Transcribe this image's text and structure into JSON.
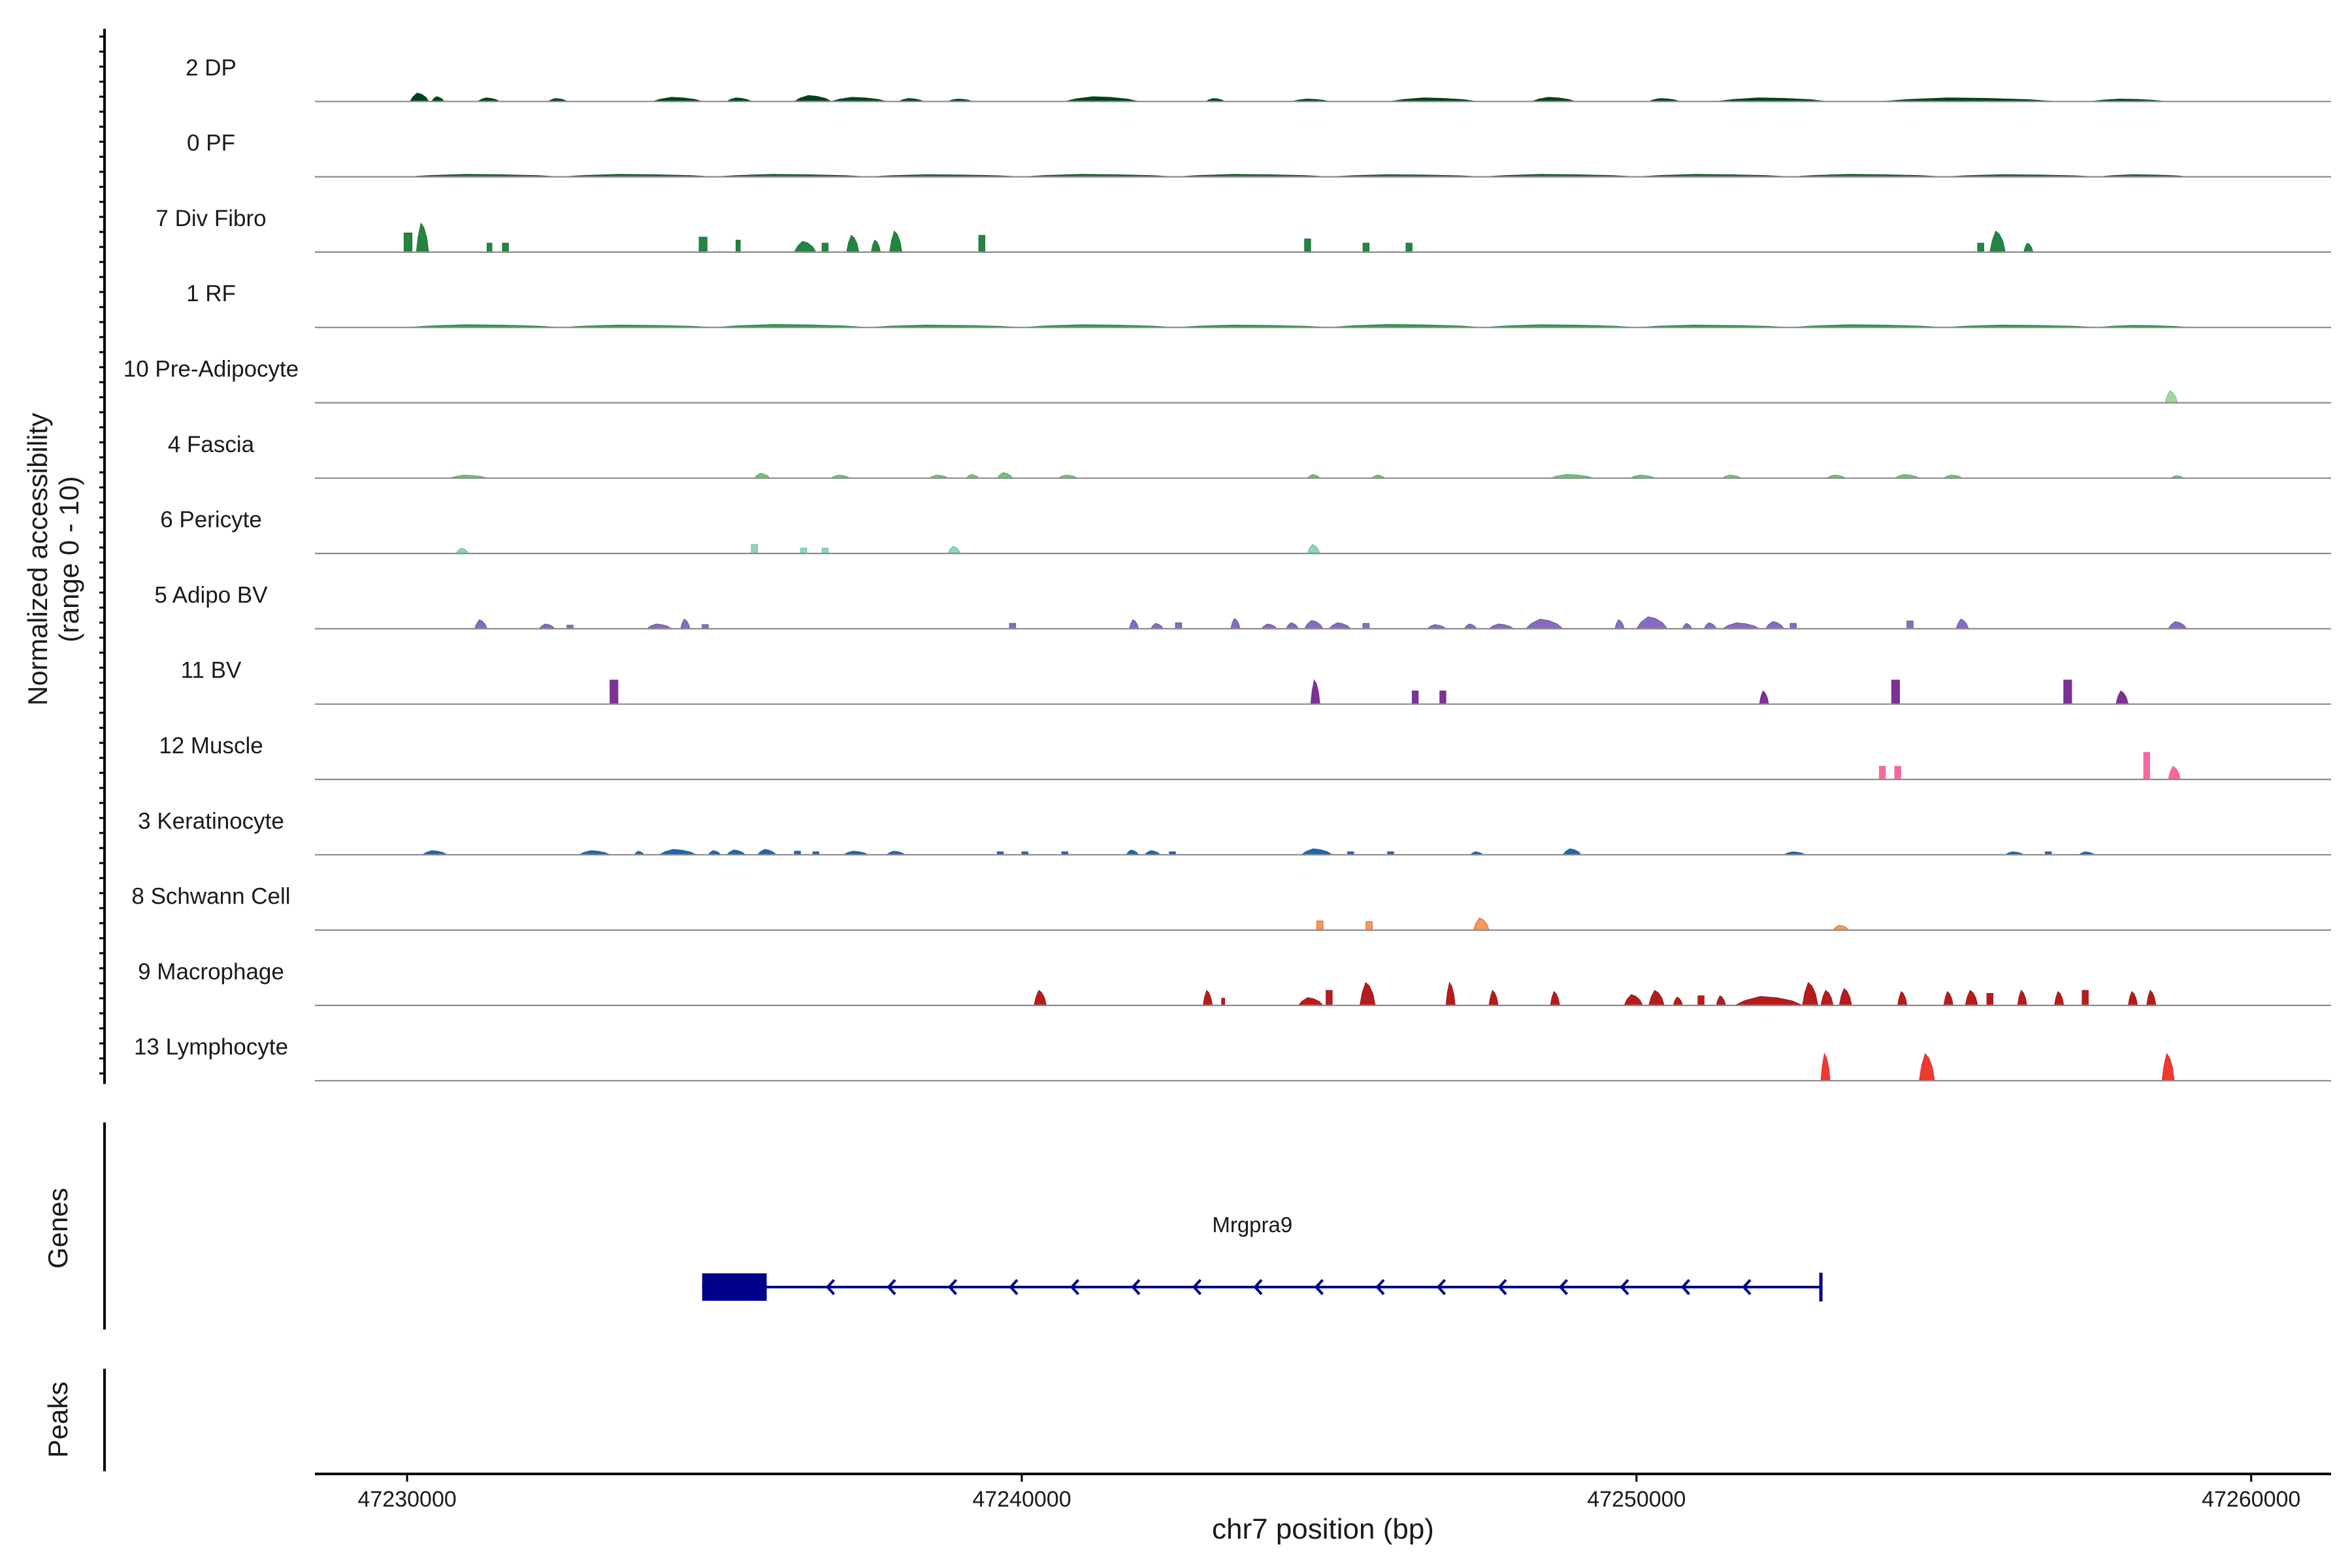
{
  "chart_data": {
    "type": "area",
    "y_axis_label_line1": "Normalized accessibility",
    "y_axis_label_line2": "(range 0 - 10)",
    "ylim": [
      0,
      10
    ],
    "xlabel": "chr7 position (bp)",
    "xlim": [
      47228500,
      47261300
    ],
    "x_ticks": [
      47230000,
      47240000,
      47250000,
      47260000
    ],
    "x_tick_labels": [
      "47230000",
      "47240000",
      "47250000",
      "47260000"
    ],
    "panel_labels": {
      "genes": "Genes",
      "peaks": "Peaks"
    },
    "genes": [
      {
        "name": "Mrgpra9",
        "strand": "-",
        "start": 47234800,
        "end": 47253000,
        "exon": [
          47234800,
          47235850
        ],
        "color": "#00008b"
      }
    ],
    "tracks": [
      {
        "name": "2 DP",
        "color": "#00441b",
        "fill": "#00441b",
        "peaks": [
          [
            47230050,
            47230350,
            1.4
          ],
          [
            47230400,
            47230600,
            0.8
          ],
          [
            47231150,
            47231500,
            0.6
          ],
          [
            47232300,
            47232600,
            0.5
          ],
          [
            47234000,
            47234800,
            0.7
          ],
          [
            47235200,
            47235600,
            0.6
          ],
          [
            47236300,
            47236900,
            1.0
          ],
          [
            47236900,
            47237800,
            0.7
          ],
          [
            47238000,
            47238400,
            0.5
          ],
          [
            47238800,
            47239200,
            0.4
          ],
          [
            47240700,
            47241900,
            0.8
          ],
          [
            47243000,
            47243300,
            0.5
          ],
          [
            47244400,
            47245000,
            0.4
          ],
          [
            47246000,
            47247400,
            0.6
          ],
          [
            47248300,
            47249000,
            0.7
          ],
          [
            47250200,
            47250700,
            0.5
          ],
          [
            47251300,
            47253100,
            0.6
          ],
          [
            47254000,
            47256800,
            0.6
          ],
          [
            47257400,
            47258600,
            0.4
          ]
        ]
      },
      {
        "name": "0 PF",
        "color": "#00441b",
        "fill": "#1e6b34",
        "peaks": [
          [
            47230000,
            47232500,
            0.4
          ],
          [
            47232500,
            47235000,
            0.4
          ],
          [
            47235000,
            47237500,
            0.4
          ],
          [
            47237500,
            47240000,
            0.35
          ],
          [
            47240000,
            47242500,
            0.4
          ],
          [
            47242500,
            47245000,
            0.4
          ],
          [
            47245000,
            47247500,
            0.35
          ],
          [
            47247500,
            47250000,
            0.4
          ],
          [
            47250000,
            47252500,
            0.4
          ],
          [
            47252500,
            47255000,
            0.4
          ],
          [
            47255000,
            47257500,
            0.35
          ],
          [
            47257500,
            47259000,
            0.35
          ]
        ]
      },
      {
        "name": "7 Div Fibro",
        "color": "#1b7837",
        "fill": "#238443",
        "peaks": [
          [
            47229950,
            47230080,
            3.2
          ],
          [
            47230150,
            47230350,
            4.8
          ],
          [
            47231300,
            47231380,
            1.5
          ],
          [
            47231550,
            47231650,
            1.5
          ],
          [
            47234750,
            47234880,
            2.5
          ],
          [
            47235350,
            47235420,
            2.0
          ],
          [
            47236300,
            47236650,
            1.8
          ],
          [
            47236750,
            47236850,
            1.5
          ],
          [
            47237150,
            47237350,
            2.8
          ],
          [
            47237550,
            47237700,
            2.0
          ],
          [
            47237850,
            47238050,
            3.5
          ],
          [
            47239300,
            47239400,
            2.8
          ],
          [
            47244600,
            47244700,
            2.2
          ],
          [
            47245550,
            47245650,
            1.5
          ],
          [
            47246250,
            47246350,
            1.5
          ],
          [
            47255550,
            47255650,
            1.5
          ],
          [
            47255750,
            47256000,
            3.5
          ],
          [
            47256300,
            47256450,
            1.5
          ]
        ]
      },
      {
        "name": "1 RF",
        "color": "#238443",
        "fill": "#2e9b52",
        "peaks": [
          [
            47230000,
            47232500,
            0.45
          ],
          [
            47232500,
            47235000,
            0.4
          ],
          [
            47235000,
            47237500,
            0.5
          ],
          [
            47237500,
            47240000,
            0.4
          ],
          [
            47240000,
            47242500,
            0.45
          ],
          [
            47242500,
            47245000,
            0.4
          ],
          [
            47245000,
            47247500,
            0.5
          ],
          [
            47247500,
            47250000,
            0.45
          ],
          [
            47250000,
            47252500,
            0.4
          ],
          [
            47252500,
            47255000,
            0.45
          ],
          [
            47255000,
            47257500,
            0.4
          ],
          [
            47257500,
            47259000,
            0.35
          ]
        ]
      },
      {
        "name": "10 Pre-Adipocyte",
        "color": "#74c476",
        "fill": "#9ed89a",
        "peaks": [
          [
            47258600,
            47258800,
            2.0
          ]
        ]
      },
      {
        "name": "4 Fascia",
        "color": "#41ab5d",
        "fill": "#74c476",
        "peaks": [
          [
            47230700,
            47231300,
            0.5
          ],
          [
            47235650,
            47235900,
            0.8
          ],
          [
            47236900,
            47237200,
            0.5
          ],
          [
            47238500,
            47238800,
            0.5
          ],
          [
            47239100,
            47239300,
            0.6
          ],
          [
            47239600,
            47239850,
            0.9
          ],
          [
            47240600,
            47240900,
            0.5
          ],
          [
            47244650,
            47244850,
            0.6
          ],
          [
            47245700,
            47245900,
            0.5
          ],
          [
            47248600,
            47249300,
            0.6
          ],
          [
            47249900,
            47250300,
            0.5
          ],
          [
            47251400,
            47251700,
            0.5
          ],
          [
            47253100,
            47253400,
            0.5
          ],
          [
            47254200,
            47254600,
            0.6
          ],
          [
            47255000,
            47255300,
            0.5
          ],
          [
            47258700,
            47258900,
            0.4
          ]
        ]
      },
      {
        "name": "6 Pericyte",
        "color": "#66c2a4",
        "fill": "#8fd4bb",
        "peaks": [
          [
            47230800,
            47231000,
            0.9
          ],
          [
            47235600,
            47235700,
            1.5
          ],
          [
            47236400,
            47236500,
            0.9
          ],
          [
            47236750,
            47236850,
            0.9
          ],
          [
            47238800,
            47239000,
            1.2
          ],
          [
            47244650,
            47244850,
            1.5
          ]
        ]
      },
      {
        "name": "5 Adipo BV",
        "color": "#6a51a3",
        "fill": "#8a6ac0",
        "peaks": [
          [
            47231100,
            47231300,
            1.5
          ],
          [
            47232150,
            47232400,
            0.8
          ],
          [
            47232600,
            47232700,
            0.6
          ],
          [
            47233900,
            47234300,
            0.8
          ],
          [
            47234450,
            47234600,
            1.6
          ],
          [
            47234800,
            47234900,
            0.7
          ],
          [
            47239800,
            47239900,
            0.9
          ],
          [
            47241750,
            47241900,
            1.5
          ],
          [
            47242100,
            47242300,
            0.9
          ],
          [
            47242500,
            47242600,
            1.0
          ],
          [
            47243400,
            47243550,
            1.7
          ],
          [
            47243900,
            47244150,
            0.8
          ],
          [
            47244300,
            47244500,
            1.0
          ],
          [
            47244600,
            47244900,
            1.4
          ],
          [
            47245000,
            47245350,
            1.0
          ],
          [
            47245550,
            47245650,
            0.9
          ],
          [
            47246600,
            47246900,
            0.7
          ],
          [
            47247200,
            47247400,
            0.8
          ],
          [
            47247600,
            47248000,
            0.8
          ],
          [
            47248200,
            47248800,
            1.6
          ],
          [
            47249650,
            47249800,
            1.5
          ],
          [
            47250000,
            47250500,
            2.0
          ],
          [
            47250750,
            47250900,
            0.9
          ],
          [
            47251100,
            47251300,
            1.0
          ],
          [
            47251400,
            47252000,
            1.0
          ],
          [
            47252100,
            47252400,
            1.2
          ],
          [
            47252500,
            47252600,
            0.9
          ],
          [
            47254400,
            47254500,
            1.3
          ],
          [
            47255200,
            47255400,
            1.6
          ],
          [
            47258650,
            47258950,
            1.2
          ]
        ]
      },
      {
        "name": "11 BV",
        "color": "#7b3294",
        "fill": "#7b3294",
        "peaks": [
          [
            47233300,
            47233430,
            4.0
          ],
          [
            47244700,
            47244850,
            4.0
          ],
          [
            47246350,
            47246450,
            2.2
          ],
          [
            47246800,
            47246900,
            2.2
          ],
          [
            47252000,
            47252150,
            2.2
          ],
          [
            47254150,
            47254280,
            4.0
          ],
          [
            47256950,
            47257080,
            4.0
          ],
          [
            47257800,
            47258000,
            2.2
          ]
        ]
      },
      {
        "name": "12 Muscle",
        "color": "#f768a1",
        "fill": "#f768a1",
        "peaks": [
          [
            47253950,
            47254050,
            2.2
          ],
          [
            47254200,
            47254300,
            2.2
          ],
          [
            47258250,
            47258350,
            4.5
          ],
          [
            47258650,
            47258850,
            2.2
          ]
        ]
      },
      {
        "name": "3 Keratinocyte",
        "color": "#2166ac",
        "fill": "#2166ac",
        "peaks": [
          [
            47230250,
            47230650,
            0.7
          ],
          [
            47232800,
            47233300,
            0.7
          ],
          [
            47233700,
            47233850,
            0.6
          ],
          [
            47234100,
            47234700,
            0.9
          ],
          [
            47234900,
            47235100,
            0.7
          ],
          [
            47235200,
            47235500,
            0.8
          ],
          [
            47235700,
            47236000,
            0.9
          ],
          [
            47236300,
            47236400,
            0.6
          ],
          [
            47236600,
            47236700,
            0.5
          ],
          [
            47237100,
            47237500,
            0.6
          ],
          [
            47237800,
            47238100,
            0.6
          ],
          [
            47239600,
            47239700,
            0.5
          ],
          [
            47240000,
            47240100,
            0.5
          ],
          [
            47240650,
            47240750,
            0.5
          ],
          [
            47241700,
            47241900,
            0.8
          ],
          [
            47242000,
            47242250,
            0.7
          ],
          [
            47242400,
            47242500,
            0.5
          ],
          [
            47244550,
            47245050,
            1.0
          ],
          [
            47245300,
            47245400,
            0.5
          ],
          [
            47245950,
            47246050,
            0.5
          ],
          [
            47247300,
            47247500,
            0.5
          ],
          [
            47248800,
            47249100,
            1.0
          ],
          [
            47252400,
            47252750,
            0.5
          ],
          [
            47256000,
            47256300,
            0.5
          ],
          [
            47256650,
            47256750,
            0.5
          ],
          [
            47257200,
            47257450,
            0.5
          ]
        ]
      },
      {
        "name": "8 Schwann Cell",
        "color": "#e6550d",
        "fill": "#f49a5f",
        "peaks": [
          [
            47244800,
            47244900,
            1.5
          ],
          [
            47245600,
            47245700,
            1.4
          ],
          [
            47247350,
            47247600,
            2.0
          ],
          [
            47253200,
            47253450,
            0.8
          ]
        ]
      },
      {
        "name": "9 Macrophage",
        "color": "#a50f15",
        "fill": "#b71c1c",
        "peaks": [
          [
            47240200,
            47240400,
            2.5
          ],
          [
            47242950,
            47243100,
            2.5
          ],
          [
            47243250,
            47243300,
            1.2
          ],
          [
            47244500,
            47244900,
            1.3
          ],
          [
            47244950,
            47245050,
            2.5
          ],
          [
            47245500,
            47245750,
            3.8
          ],
          [
            47246900,
            47247050,
            3.8
          ],
          [
            47247600,
            47247750,
            2.5
          ],
          [
            47248600,
            47248750,
            2.3
          ],
          [
            47249800,
            47250100,
            1.8
          ],
          [
            47250200,
            47250450,
            2.5
          ],
          [
            47250600,
            47250750,
            1.4
          ],
          [
            47251000,
            47251100,
            1.6
          ],
          [
            47251300,
            47251450,
            1.6
          ],
          [
            47251600,
            47252700,
            1.5
          ],
          [
            47252700,
            47252950,
            3.8
          ],
          [
            47253000,
            47253200,
            2.5
          ],
          [
            47253300,
            47253500,
            2.8
          ],
          [
            47254250,
            47254400,
            2.3
          ],
          [
            47255000,
            47255150,
            2.3
          ],
          [
            47255350,
            47255550,
            2.5
          ],
          [
            47255700,
            47255800,
            2.0
          ],
          [
            47256200,
            47256350,
            2.5
          ],
          [
            47256800,
            47256950,
            2.3
          ],
          [
            47257250,
            47257350,
            2.5
          ],
          [
            47258000,
            47258150,
            2.3
          ],
          [
            47258300,
            47258450,
            2.5
          ]
        ]
      },
      {
        "name": "13 Lymphocyte",
        "color": "#e6302c",
        "fill": "#ee3a30",
        "peaks": [
          [
            47253000,
            47253150,
            4.5
          ],
          [
            47254600,
            47254850,
            4.5
          ],
          [
            47258550,
            47258750,
            4.5
          ]
        ]
      }
    ]
  }
}
